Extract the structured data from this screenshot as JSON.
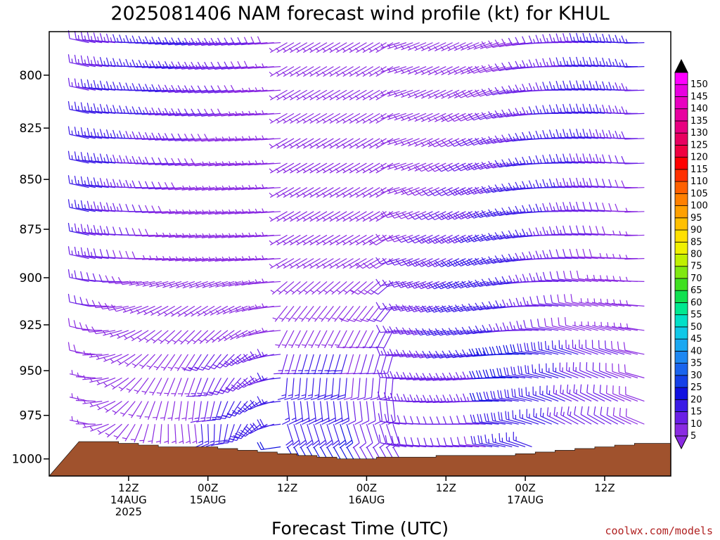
{
  "chart_data": {
    "type": "wind-barb time-height",
    "title": "2025081406 NAM forecast wind profile (kt) for KHUL",
    "xlabel": "Forecast Time (UTC)",
    "ylabel": "",
    "y_axis": {
      "scale": "log",
      "inverted": true,
      "range": [
        780,
        1010
      ],
      "ticks": [
        "800",
        "825",
        "850",
        "875",
        "900",
        "925",
        "950",
        "975",
        "1000"
      ]
    },
    "x_axis": {
      "ticks": [
        {
          "time": "2025-08-14T12Z",
          "l1": "12Z",
          "l2": "14AUG",
          "l3": "2025"
        },
        {
          "time": "2025-08-15T00Z",
          "l1": "00Z",
          "l2": "15AUG",
          "l3": ""
        },
        {
          "time": "2025-08-15T12Z",
          "l1": "12Z",
          "l2": "",
          "l3": ""
        },
        {
          "time": "2025-08-16T00Z",
          "l1": "00Z",
          "l2": "16AUG",
          "l3": ""
        },
        {
          "time": "2025-08-16T12Z",
          "l1": "12Z",
          "l2": "",
          "l3": ""
        },
        {
          "time": "2025-08-17T00Z",
          "l1": "00Z",
          "l2": "17AUG",
          "l3": ""
        },
        {
          "time": "2025-08-17T12Z",
          "l1": "12Z",
          "l2": "",
          "l3": ""
        }
      ]
    },
    "forecast_hours": [
      0,
      84
    ],
    "barb_levels_hpa": [
      785,
      796,
      807,
      818,
      830,
      842,
      854,
      866,
      878,
      890,
      902,
      915,
      928,
      941,
      954,
      967,
      980,
      993
    ],
    "colorbar": {
      "units": "kt",
      "labels": [
        "5",
        "10",
        "15",
        "20",
        "25",
        "30",
        "35",
        "40",
        "45",
        "50",
        "55",
        "60",
        "65",
        "70",
        "75",
        "80",
        "85",
        "90",
        "95",
        "100",
        "105",
        "110",
        "115",
        "120",
        "125",
        "130",
        "135",
        "140",
        "145",
        "150"
      ],
      "colors": [
        "#8a2be2",
        "#6a1fe6",
        "#3a1ae6",
        "#1010e0",
        "#1540e8",
        "#1a64ee",
        "#1e88f2",
        "#1aa8f2",
        "#10c8e8",
        "#00e0c8",
        "#00e890",
        "#10e050",
        "#40e020",
        "#80e810",
        "#c0f000",
        "#f0f000",
        "#ffe000",
        "#ffc000",
        "#ffa000",
        "#ff8000",
        "#ff6000",
        "#ff3000",
        "#ff0000",
        "#f00040",
        "#e80060",
        "#e80080",
        "#e800a0",
        "#e800c0",
        "#e800e0",
        "#ff00ff"
      ]
    },
    "terrain_color": "#a0522d",
    "terrain_surface_pressure_hpa": [
      [
        0,
        990
      ],
      [
        3,
        990
      ],
      [
        6,
        991
      ],
      [
        9,
        992
      ],
      [
        12,
        993
      ],
      [
        15,
        993
      ],
      [
        18,
        993
      ],
      [
        21,
        994
      ],
      [
        24,
        995
      ],
      [
        27,
        996
      ],
      [
        30,
        997
      ],
      [
        33,
        998
      ],
      [
        36,
        999
      ],
      [
        39,
        1000
      ],
      [
        42,
        1000
      ],
      [
        45,
        999
      ],
      [
        48,
        999
      ],
      [
        51,
        999
      ],
      [
        54,
        998
      ],
      [
        57,
        998
      ],
      [
        60,
        998
      ],
      [
        63,
        998
      ],
      [
        66,
        997
      ],
      [
        69,
        996
      ],
      [
        72,
        995
      ],
      [
        75,
        994
      ],
      [
        78,
        993
      ],
      [
        81,
        992
      ],
      [
        84,
        991
      ]
    ]
  },
  "credit": "coolwx.com/models"
}
